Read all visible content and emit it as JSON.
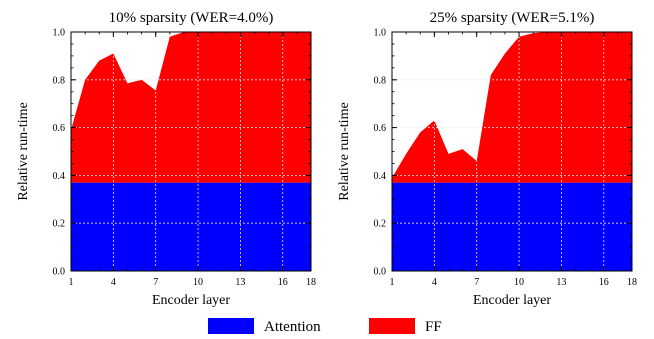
{
  "legend": [
    {
      "name": "Attention",
      "color": "#0000ff"
    },
    {
      "name": "FF",
      "color": "#ff0000"
    }
  ],
  "chart_data": [
    {
      "type": "area",
      "title": "10% sparsity (WER=4.0%)",
      "xlabel": "Encoder layer",
      "ylabel": "Relative run-time",
      "xlim": [
        1,
        18
      ],
      "ylim": [
        0,
        1.0
      ],
      "xticks": [
        "1",
        "4",
        "7",
        "10",
        "13",
        "16",
        "18"
      ],
      "yticks": [
        "0.0",
        "0.2",
        "0.4",
        "0.6",
        "0.8",
        "1.0"
      ],
      "grid": true,
      "stacked": true,
      "x": [
        1,
        2,
        3,
        4,
        5,
        6,
        7,
        8,
        9,
        10,
        11,
        12,
        13,
        14,
        15,
        16,
        17,
        18
      ],
      "series": [
        {
          "name": "Attention",
          "color": "#0000ff",
          "values": [
            0.37,
            0.37,
            0.37,
            0.37,
            0.37,
            0.37,
            0.37,
            0.37,
            0.37,
            0.37,
            0.37,
            0.37,
            0.37,
            0.37,
            0.37,
            0.37,
            0.37,
            0.37
          ]
        },
        {
          "name": "FF",
          "color": "#ff0000",
          "values": [
            0.22,
            0.43,
            0.51,
            0.54,
            0.415,
            0.43,
            0.385,
            0.61,
            0.63,
            0.63,
            0.63,
            0.63,
            0.63,
            0.63,
            0.63,
            0.63,
            0.63,
            0.63
          ]
        }
      ]
    },
    {
      "type": "area",
      "title": "25% sparsity (WER=5.1%)",
      "xlabel": "Encoder layer",
      "ylabel": "Relative run-time",
      "xlim": [
        1,
        18
      ],
      "ylim": [
        0,
        1.0
      ],
      "xticks": [
        "1",
        "4",
        "7",
        "10",
        "13",
        "16",
        "18"
      ],
      "yticks": [
        "0.0",
        "0.2",
        "0.4",
        "0.6",
        "0.8",
        "1.0"
      ],
      "grid": true,
      "stacked": true,
      "x": [
        1,
        2,
        3,
        4,
        5,
        6,
        7,
        8,
        9,
        10,
        11,
        12,
        13,
        14,
        15,
        16,
        17,
        18
      ],
      "series": [
        {
          "name": "Attention",
          "color": "#0000ff",
          "values": [
            0.37,
            0.37,
            0.37,
            0.37,
            0.37,
            0.37,
            0.37,
            0.37,
            0.37,
            0.37,
            0.37,
            0.37,
            0.37,
            0.37,
            0.37,
            0.37,
            0.37,
            0.37
          ]
        },
        {
          "name": "FF",
          "color": "#ff0000",
          "values": [
            0.02,
            0.12,
            0.21,
            0.26,
            0.12,
            0.14,
            0.09,
            0.45,
            0.54,
            0.61,
            0.625,
            0.63,
            0.63,
            0.63,
            0.63,
            0.63,
            0.63,
            0.63
          ]
        }
      ]
    }
  ]
}
